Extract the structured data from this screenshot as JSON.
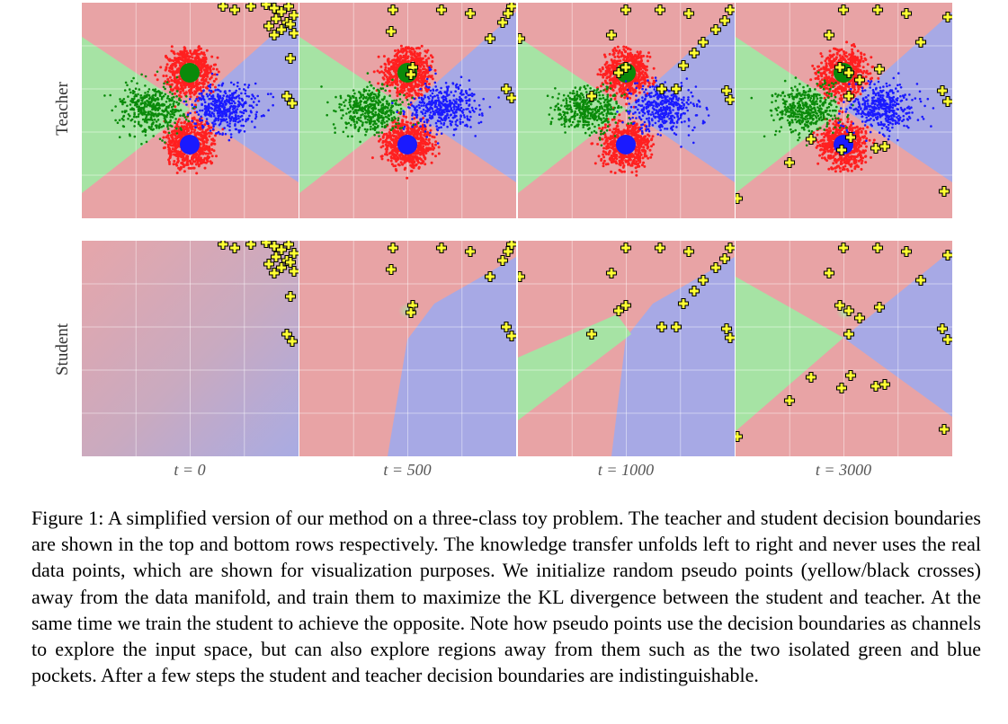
{
  "figure": {
    "row_labels": [
      "Teacher",
      "Student"
    ],
    "time_labels": [
      "t = 0",
      "t = 500",
      "t = 1000",
      "t = 3000"
    ],
    "class_colors": {
      "red": "#e8a3a5",
      "green": "#a6e3a4",
      "blue": "#a7a9e5"
    },
    "point_colors": {
      "red": "#ff2020",
      "green": "#0a8a0a",
      "blue": "#1a1aff"
    },
    "pseudo_point_color": "#ffff33"
  },
  "caption": {
    "text": "Figure 1: A simplified version of our method on a three-class toy problem. The teacher and student decision boundaries are shown in the top and bottom rows respectively. The knowledge transfer unfolds left to right and never uses the real data points, which are shown for visualization purposes. We initialize random pseudo points (yellow/black crosses) away from the data manifold, and train them to maximize the KL divergence between the student and teacher. At the same time we train the student to achieve the opposite. Note how pseudo points use the decision boundaries as channels to explore the input space, but can also explore regions away from them such as the two isolated green and blue pockets. After a few steps the student and teacher decision boundaries are indistinguishable."
  }
}
